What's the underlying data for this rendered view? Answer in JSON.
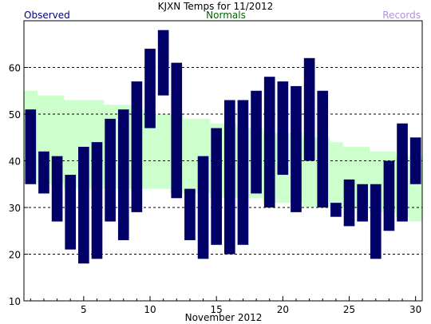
{
  "chart_data": {
    "type": "bar",
    "title": "KJXN Temps for 11/2012",
    "xlabel": "November 2012",
    "ylabel": "",
    "legend": [
      {
        "label": "Observed",
        "color": "#000080"
      },
      {
        "label": "Normals",
        "color": "#006400"
      },
      {
        "label": "Records",
        "color": "#b28fd6"
      }
    ],
    "xlim": [
      0.5,
      30.5
    ],
    "ylim": [
      10,
      70
    ],
    "yticks": [
      10,
      20,
      30,
      40,
      50,
      60
    ],
    "xticks": [
      5,
      10,
      15,
      20,
      25,
      30
    ],
    "grid_y": [
      20,
      30,
      40,
      50,
      60
    ],
    "days": [
      1,
      2,
      3,
      4,
      5,
      6,
      7,
      8,
      9,
      10,
      11,
      12,
      13,
      14,
      15,
      16,
      17,
      18,
      19,
      20,
      21,
      22,
      23,
      24,
      25,
      26,
      27,
      28,
      29,
      30
    ],
    "observed_high": [
      51,
      42,
      41,
      37,
      43,
      44,
      49,
      51,
      57,
      64,
      68,
      61,
      34,
      41,
      47,
      53,
      53,
      55,
      58,
      57,
      56,
      62,
      55,
      31,
      36,
      35,
      35,
      40,
      48,
      45
    ],
    "observed_low": [
      35,
      33,
      27,
      21,
      18,
      19,
      27,
      23,
      29,
      47,
      54,
      32,
      23,
      19,
      22,
      20,
      22,
      33,
      30,
      37,
      29,
      40,
      30,
      28,
      26,
      27,
      19,
      25,
      27,
      35
    ],
    "normal_high": [
      55,
      54,
      54,
      53,
      53,
      53,
      52,
      52,
      51,
      50,
      50,
      50,
      49,
      49,
      48,
      48,
      47,
      47,
      46,
      46,
      46,
      45,
      45,
      44,
      43,
      43,
      42,
      42,
      41,
      41
    ],
    "normal_low": [
      35,
      35,
      35,
      34,
      34,
      34,
      34,
      34,
      34,
      34,
      34,
      33,
      33,
      33,
      32,
      32,
      32,
      32,
      31,
      31,
      31,
      30,
      30,
      30,
      30,
      30,
      29,
      29,
      28,
      27
    ],
    "colors": {
      "observed": "#000066",
      "normals": "#ccffcc",
      "grid": "#000000",
      "axis": "#000000"
    }
  }
}
